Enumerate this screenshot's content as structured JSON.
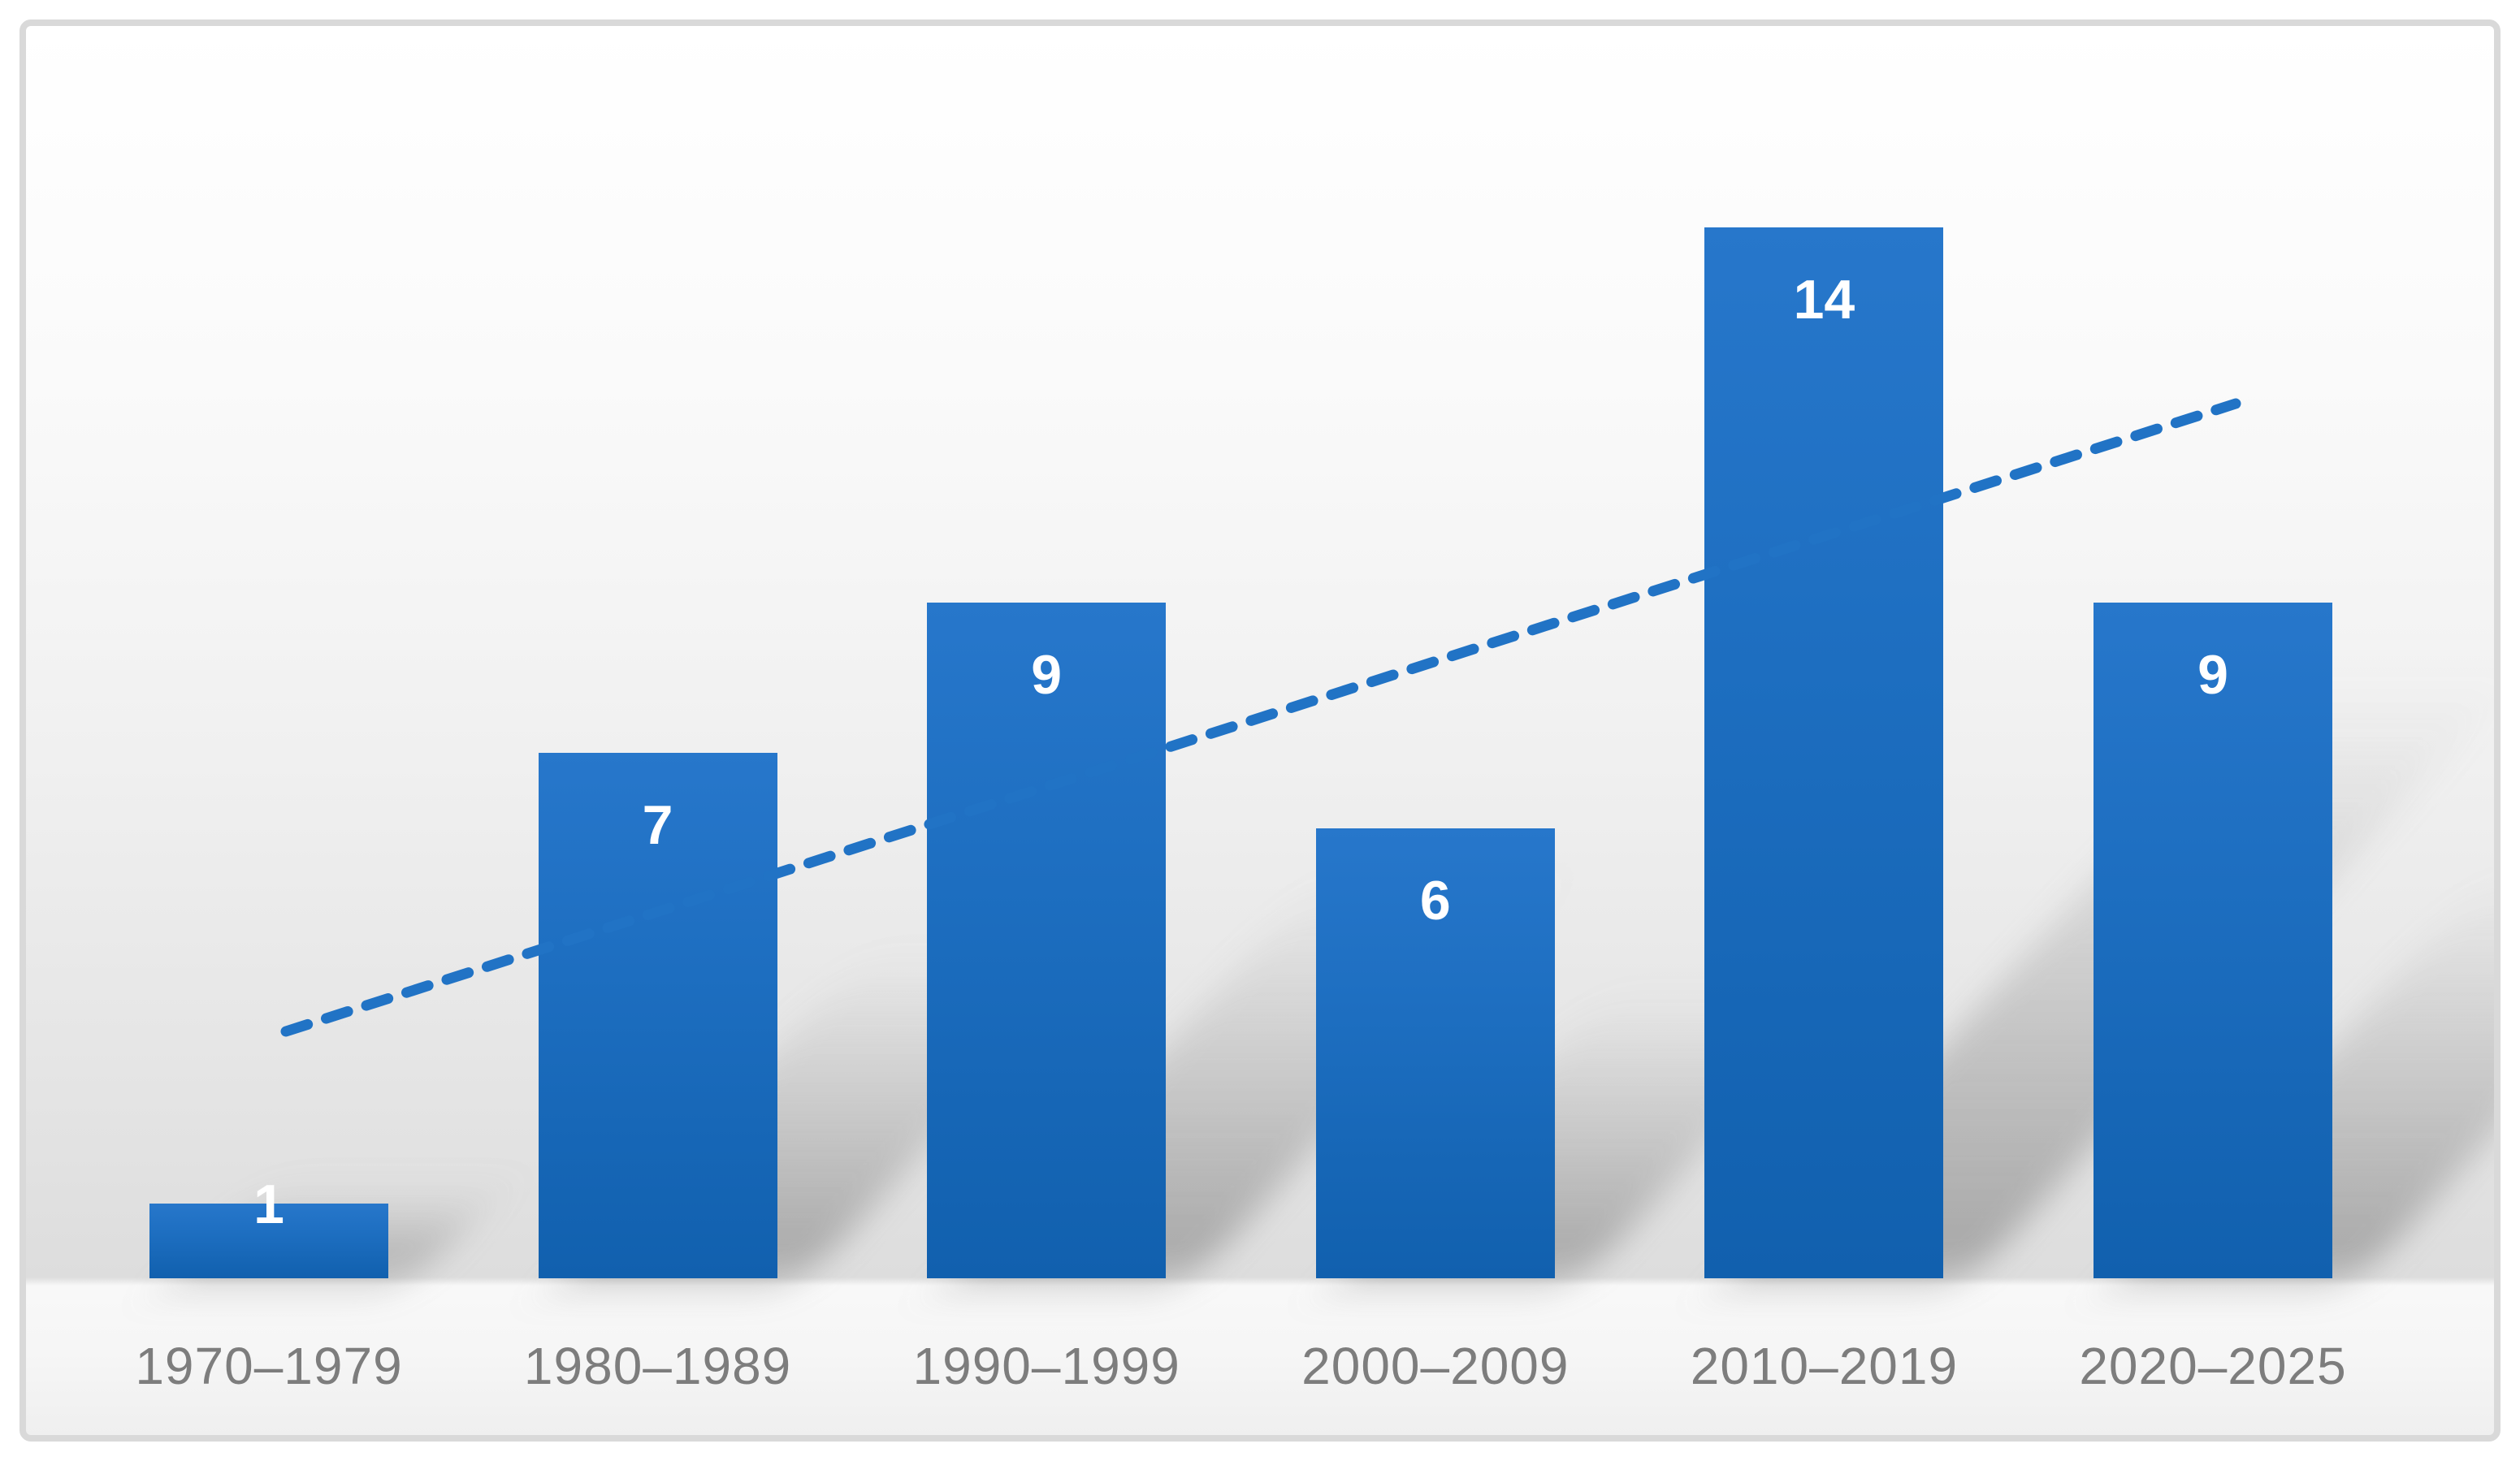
{
  "chart_data": {
    "type": "bar",
    "categories": [
      "1970–1979",
      "1980–1989",
      "1990–1999",
      "2000–2009",
      "2010–2019",
      "2020–2025"
    ],
    "values": [
      1,
      7,
      9,
      6,
      14,
      9
    ],
    "data_labels": [
      "1",
      "7",
      "9",
      "6",
      "14",
      "9"
    ],
    "title": "",
    "xlabel": "",
    "ylabel": "",
    "ylim": [
      0,
      14
    ],
    "gridlines": false,
    "y_axis_visible": false,
    "legend_position": "none",
    "trendline": {
      "present": true,
      "type": "linear",
      "style": "dashed",
      "direction": "rising"
    },
    "colors": {
      "bar_top": "#2777cb",
      "bar_bottom": "#1160ae",
      "trendline": "#2173c5",
      "data_label": "#ffffff",
      "category_label": "#7d7d7d",
      "frame_border": "#d9d9d9",
      "background_top": "#ffffff",
      "background_gray": "#dddddd"
    }
  }
}
